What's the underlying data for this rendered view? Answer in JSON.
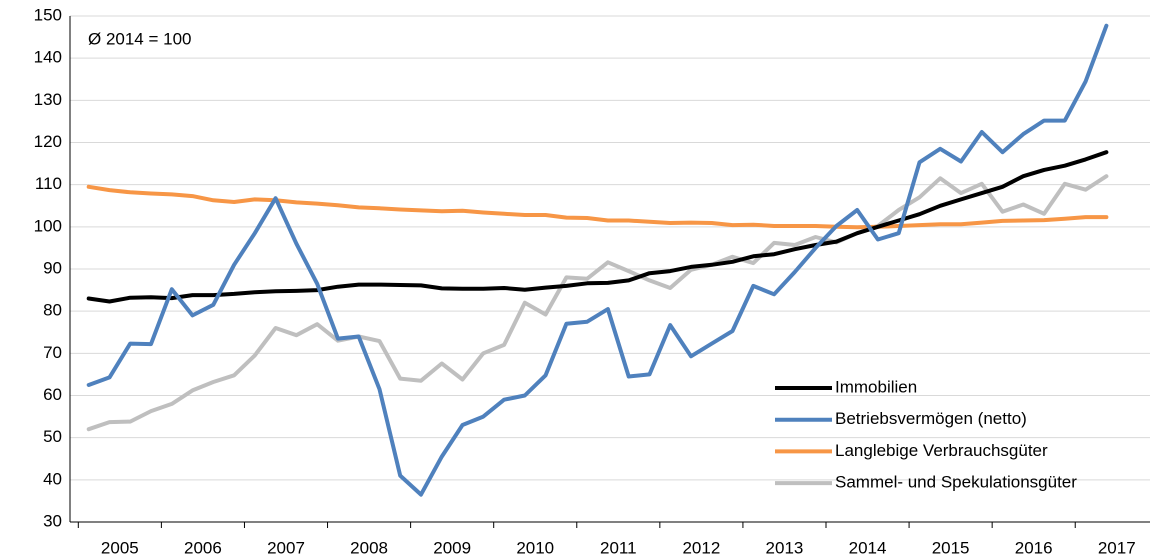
{
  "chart_data": {
    "type": "line",
    "annotation": "Ø 2014 = 100",
    "x": [
      2005.125,
      2005.375,
      2005.625,
      2005.875,
      2006.125,
      2006.375,
      2006.625,
      2006.875,
      2007.125,
      2007.375,
      2007.625,
      2007.875,
      2008.125,
      2008.375,
      2008.625,
      2008.875,
      2009.125,
      2009.375,
      2009.625,
      2009.875,
      2010.125,
      2010.375,
      2010.625,
      2010.875,
      2011.125,
      2011.375,
      2011.625,
      2011.875,
      2012.125,
      2012.375,
      2012.625,
      2012.875,
      2013.125,
      2013.375,
      2013.625,
      2013.875,
      2014.125,
      2014.375,
      2014.625,
      2014.875,
      2015.125,
      2015.375,
      2015.625,
      2015.875,
      2016.125,
      2016.375,
      2016.625,
      2016.875,
      2017.125,
      2017.375
    ],
    "series": [
      {
        "name": "Immobilien",
        "color": "#000000",
        "values": [
          83,
          82.3,
          83.2,
          83.3,
          83.1,
          83.8,
          83.8,
          84.1,
          84.5,
          84.7,
          84.8,
          85,
          85.8,
          86.3,
          86.3,
          86.2,
          86.1,
          85.4,
          85.3,
          85.3,
          85.5,
          85.1,
          85.6,
          86,
          86.6,
          86.7,
          87.3,
          89,
          89.5,
          90.5,
          91,
          91.7,
          93,
          93.5,
          94.7,
          95.7,
          96.5,
          98.5,
          100,
          101.5,
          103,
          105,
          106.5,
          108,
          109.5,
          112,
          113.5,
          114.5,
          116,
          117.7
        ]
      },
      {
        "name": "Betriebsvermögen (netto)",
        "color": "#4f81bd",
        "values": [
          62.5,
          64.3,
          72.3,
          72.2,
          85.2,
          79,
          81.5,
          91,
          98.5,
          106.8,
          96,
          86.5,
          73.5,
          74,
          61.5,
          41,
          36.5,
          45.5,
          53,
          55,
          59,
          60,
          64.8,
          77,
          77.5,
          80.5,
          64.5,
          65,
          76.7,
          69.3,
          72.3,
          75.3,
          86,
          84,
          89.3,
          95,
          100.2,
          104,
          97,
          98.5,
          115.3,
          118.5,
          115.5,
          122.5,
          117.7,
          122,
          125.2,
          125.2,
          134.5,
          147.7
        ]
      },
      {
        "name": "Langlebige Verbrauchsgüter",
        "color": "#f79646",
        "values": [
          109.5,
          108.7,
          108.2,
          107.9,
          107.7,
          107.3,
          106.3,
          105.9,
          106.5,
          106.3,
          105.8,
          105.5,
          105.1,
          104.6,
          104.4,
          104.1,
          103.9,
          103.7,
          103.8,
          103.4,
          103.1,
          102.8,
          102.8,
          102.2,
          102.1,
          101.5,
          101.5,
          101.2,
          100.9,
          101,
          100.9,
          100.4,
          100.5,
          100.2,
          100.2,
          100.2,
          100,
          99.9,
          100,
          100.2,
          100.4,
          100.6,
          100.6,
          101,
          101.4,
          101.5,
          101.6,
          101.9,
          102.3,
          102.3
        ]
      },
      {
        "name": "Sammel- und Spekulationsgüter",
        "color": "#bfbfbf",
        "values": [
          52,
          53.7,
          53.8,
          56.3,
          58,
          61.2,
          63.2,
          64.8,
          69.5,
          76,
          74.3,
          76.9,
          73,
          74,
          72.9,
          64,
          63.5,
          67.6,
          63.8,
          70,
          72,
          82,
          79.2,
          88,
          87.7,
          91.6,
          89.5,
          87.3,
          85.5,
          89.8,
          91,
          92.9,
          91.4,
          96.2,
          95.7,
          97.6,
          96.3,
          98.5,
          100.2,
          104,
          107,
          111.5,
          108,
          110.2,
          103.6,
          105.3,
          103.1,
          110.2,
          108.8,
          112
        ]
      }
    ],
    "xlim": [
      2004.9,
      2017.9
    ],
    "xticks": [
      {
        "value": 2005.5,
        "label": "2005"
      },
      {
        "value": 2006.5,
        "label": "2006"
      },
      {
        "value": 2007.5,
        "label": "2007"
      },
      {
        "value": 2008.5,
        "label": "2008"
      },
      {
        "value": 2009.5,
        "label": "2009"
      },
      {
        "value": 2010.5,
        "label": "2010"
      },
      {
        "value": 2011.5,
        "label": "2011"
      },
      {
        "value": 2012.5,
        "label": "2012"
      },
      {
        "value": 2013.5,
        "label": "2013"
      },
      {
        "value": 2014.5,
        "label": "2014"
      },
      {
        "value": 2015.5,
        "label": "2015"
      },
      {
        "value": 2016.5,
        "label": "2016"
      },
      {
        "value": 2017.5,
        "label": "2017"
      }
    ],
    "ylim": [
      30,
      150
    ],
    "yticks": [
      30,
      40,
      50,
      60,
      70,
      80,
      90,
      100,
      110,
      120,
      130,
      140,
      150
    ],
    "grid": true,
    "legend": "lower-right"
  }
}
